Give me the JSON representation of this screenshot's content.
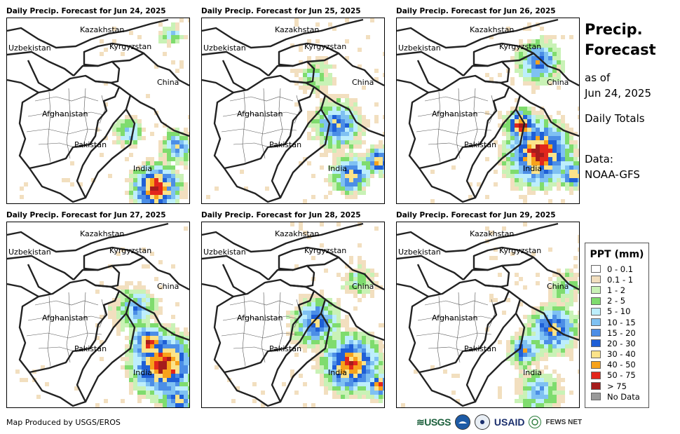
{
  "panels": [
    {
      "title": "Daily Precip. Forecast for Jun 24, 2025"
    },
    {
      "title": "Daily Precip. Forecast for Jun 25, 2025"
    },
    {
      "title": "Daily Precip. Forecast for Jun 26, 2025"
    },
    {
      "title": "Daily Precip. Forecast for Jun 27, 2025"
    },
    {
      "title": "Daily Precip. Forecast for Jun 28, 2025"
    },
    {
      "title": "Daily Precip. Forecast for Jun 29, 2025"
    }
  ],
  "map_labels": {
    "kazakhstan": "Kazakhstan",
    "uzbekistan": "Uzbekistan",
    "kyrgyzstan": "Kyrgyzstan",
    "china": "China",
    "afghanistan": "Afghanistan",
    "pakistan": "Pakistan",
    "india": "India"
  },
  "side": {
    "title_line1": "Precip.",
    "title_line2": "Forecast",
    "asof_line1": "as of",
    "asof_line2": "Jun 24, 2025",
    "totals": "Daily Totals",
    "data_line1": "Data:",
    "data_line2": "NOAA-GFS"
  },
  "legend": {
    "title": "PPT (mm)",
    "items": [
      {
        "label": "0 - 0.1",
        "color": "#ffffff"
      },
      {
        "label": "0.1 - 1",
        "color": "#f2dfbf"
      },
      {
        "label": "1 - 2",
        "color": "#c9f2b6"
      },
      {
        "label": "2 - 5",
        "color": "#7fdc6e"
      },
      {
        "label": "5 - 10",
        "color": "#bdeefc"
      },
      {
        "label": "10 - 15",
        "color": "#7fc1f2"
      },
      {
        "label": "15 - 20",
        "color": "#4c8ee6"
      },
      {
        "label": "20 - 30",
        "color": "#1f5fd6"
      },
      {
        "label": "30 - 40",
        "color": "#fbe38a"
      },
      {
        "label": "40 - 50",
        "color": "#f7a21b"
      },
      {
        "label": "50 - 75",
        "color": "#e2261c"
      },
      {
        "label": "> 75",
        "color": "#a51c1c"
      },
      {
        "label": "No Data",
        "color": "#9a9a9a"
      }
    ]
  },
  "footer": {
    "credit": "Map Produced by USGS/EROS",
    "logo_usgs": "≋USGS",
    "logo_usaid": "USAID",
    "logo_fews": "FEWS NET"
  }
}
